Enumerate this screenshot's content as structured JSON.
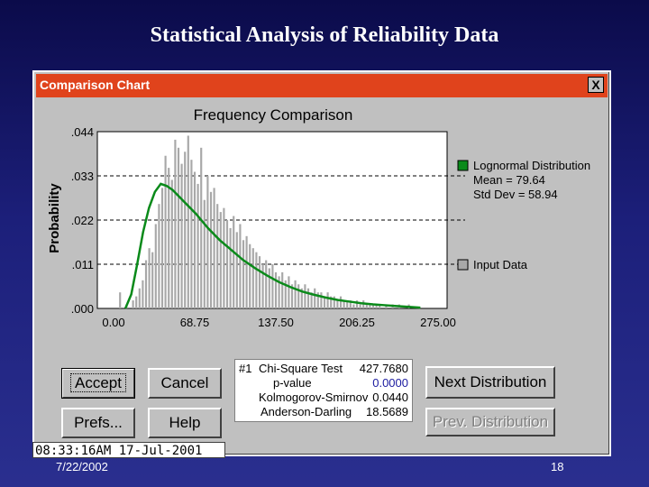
{
  "slide": {
    "title": "Statistical Analysis of Reliability Data",
    "date": "7/22/2002",
    "page_number": "18"
  },
  "window": {
    "title": "Comparison Chart",
    "close_label": "X"
  },
  "buttons": {
    "accept": "Accept",
    "cancel": "Cancel",
    "prefs": "Prefs...",
    "help": "Help",
    "next": "Next Distribution",
    "prev": "Prev. Distribution"
  },
  "stats": {
    "index": "#1",
    "rows": [
      {
        "label": "Chi-Square Test",
        "value": "427.7680"
      },
      {
        "label": "p-value",
        "value": "0.0000"
      },
      {
        "label": "Kolmogorov-Smirnov",
        "value": "0.0440"
      },
      {
        "label": "Anderson-Darling",
        "value": "18.5689"
      }
    ],
    "pvalue_color": "#1a1aa0"
  },
  "status": {
    "clock": "08:33:16AM 17-Jul-2001"
  },
  "colors": {
    "titlebar": "#e0431c",
    "curve": "#0a8a1a",
    "bars": "#a8a8a8"
  },
  "chart_data": {
    "type": "bar",
    "title": "Frequency Comparison",
    "ylabel": "Probability",
    "xlabel": "",
    "ylim": [
      0,
      0.044
    ],
    "xlim": [
      0,
      275
    ],
    "yticks": [
      ".044",
      ".033",
      ".022",
      ".011",
      ".000"
    ],
    "ytick_values": [
      0.044,
      0.033,
      0.022,
      0.011,
      0.0
    ],
    "xticks": [
      "0.00",
      "68.75",
      "137.50",
      "206.25",
      "275.00"
    ],
    "xtick_values": [
      0,
      68.75,
      137.5,
      206.25,
      275
    ],
    "grid": "horizontal dashed",
    "legend_position": "right",
    "legend": [
      {
        "name": "Lognormal Distribution",
        "lines": [
          "Mean = 79.64",
          "Std Dev = 58.94"
        ],
        "color": "#0a8a1a"
      },
      {
        "name": "Input Data",
        "lines": [],
        "color": "#a8a8a8"
      }
    ],
    "series": [
      {
        "name": "Input Data",
        "type": "bar",
        "bin_width": 2.75,
        "bin_start": 5.5,
        "values": [
          0.004,
          0.0,
          0.001,
          0.0,
          0.002,
          0.003,
          0.005,
          0.007,
          0.012,
          0.015,
          0.014,
          0.021,
          0.026,
          0.03,
          0.038,
          0.035,
          0.032,
          0.042,
          0.04,
          0.036,
          0.039,
          0.043,
          0.037,
          0.034,
          0.031,
          0.04,
          0.027,
          0.033,
          0.029,
          0.03,
          0.026,
          0.024,
          0.025,
          0.022,
          0.02,
          0.023,
          0.019,
          0.021,
          0.017,
          0.018,
          0.016,
          0.015,
          0.014,
          0.013,
          0.011,
          0.012,
          0.01,
          0.011,
          0.009,
          0.008,
          0.009,
          0.007,
          0.008,
          0.006,
          0.007,
          0.006,
          0.005,
          0.006,
          0.005,
          0.004,
          0.005,
          0.004,
          0.004,
          0.003,
          0.004,
          0.003,
          0.003,
          0.002,
          0.003,
          0.002,
          0.002,
          0.002,
          0.001,
          0.002,
          0.001,
          0.002,
          0.001,
          0.001,
          0.001,
          0.001,
          0.001,
          0.0,
          0.001,
          0.0,
          0.001,
          0.0,
          0.001,
          0.0,
          0.0,
          0.001,
          0.0
        ]
      },
      {
        "name": "Lognormal Distribution",
        "type": "line",
        "x": [
          10,
          15,
          20,
          25,
          30,
          35,
          40,
          45,
          50,
          55,
          60,
          65,
          70,
          80,
          90,
          100,
          110,
          120,
          130,
          140,
          150,
          160,
          170,
          180,
          190,
          200,
          210,
          220,
          230,
          240,
          250,
          260
        ],
        "values": [
          0.0,
          0.0035,
          0.011,
          0.019,
          0.025,
          0.029,
          0.031,
          0.0305,
          0.0295,
          0.028,
          0.0265,
          0.025,
          0.0235,
          0.02,
          0.017,
          0.0145,
          0.012,
          0.01,
          0.0082,
          0.0066,
          0.0053,
          0.0042,
          0.0034,
          0.0027,
          0.0021,
          0.0017,
          0.0013,
          0.001,
          0.0008,
          0.0006,
          0.0004,
          0.0002
        ]
      }
    ]
  }
}
